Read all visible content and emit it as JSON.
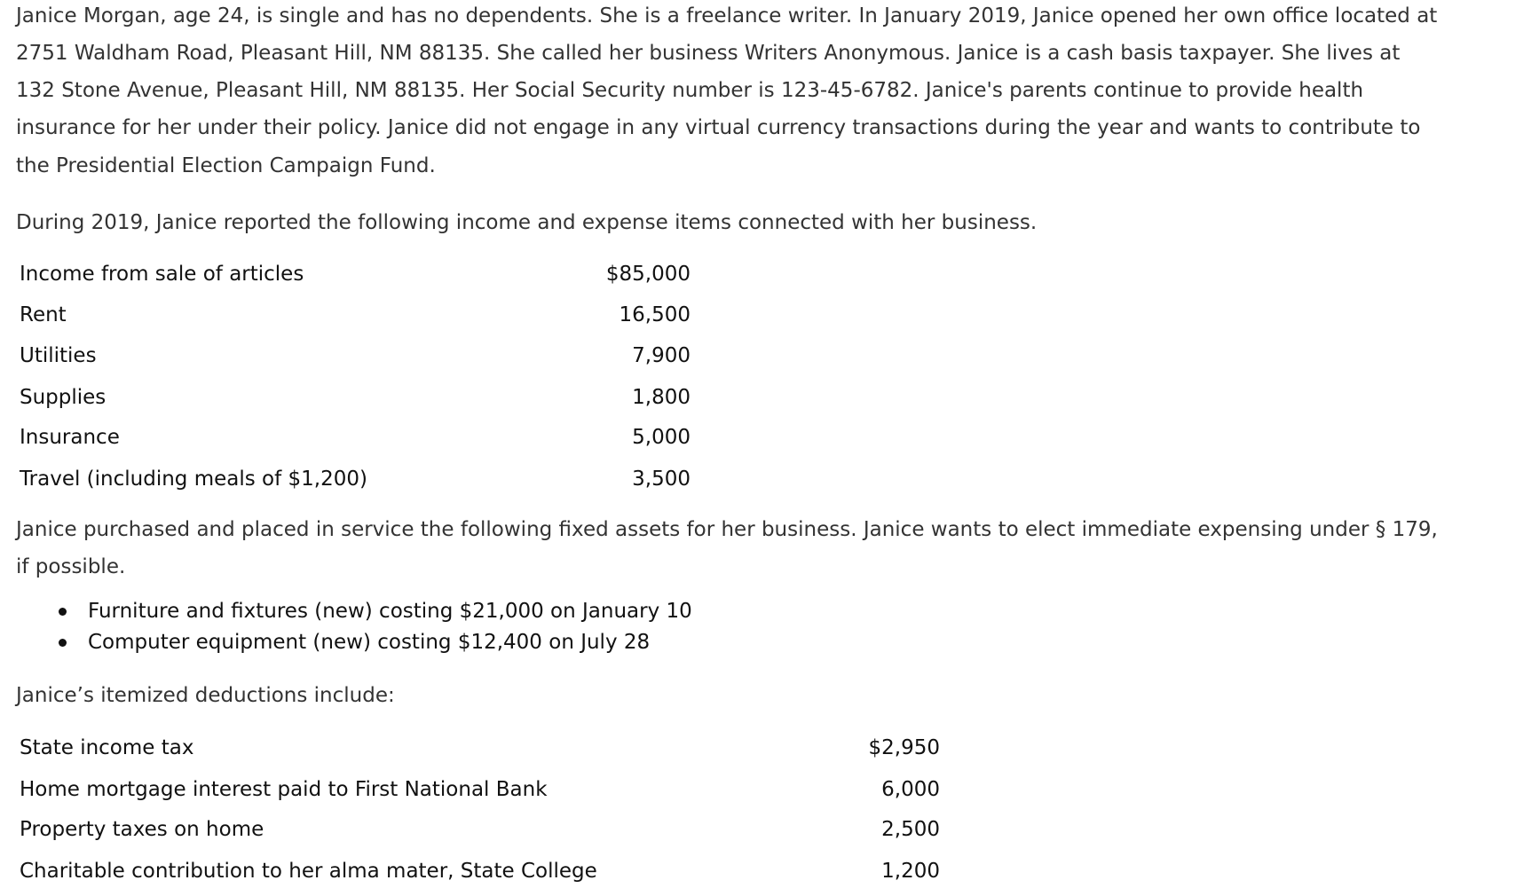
{
  "intro_lines": [
    "Janice Morgan, age 24, is single and has no dependents. She is a freelance writer. In January 2019, Janice opened her own office located at",
    "2751 Waldham Road, Pleasant Hill, NM 88135. She called her business Writers Anonymous. Janice is a cash basis taxpayer. She lives at",
    "132 Stone Avenue, Pleasant Hill, NM 88135. Her Social Security number is 123-45-6782. Janice's parents continue to provide health",
    "insurance for her under their policy. Janice did not engage in any virtual currency transactions during the year and wants to contribute to",
    "the Presidential Election Campaign Fund."
  ],
  "business_intro": "During 2019, Janice reported the following income and expense items connected with her business.",
  "business_items": [
    {
      "label": "Income from sale of articles",
      "amount": "$85,000"
    },
    {
      "label": "Rent",
      "amount": "16,500"
    },
    {
      "label": "Utilities",
      "amount": "7,900"
    },
    {
      "label": "Supplies",
      "amount": "1,800"
    },
    {
      "label": "Insurance",
      "amount": "5,000"
    },
    {
      "label": "Travel (including meals of $1,200)",
      "amount": "3,500"
    }
  ],
  "assets_intro_lines": [
    "Janice purchased and placed in service the following fixed assets for her business. Janice wants to elect immediate expensing under § 179,",
    "if possible."
  ],
  "assets": [
    "Furniture and fixtures (new) costing $21,000 on January 10",
    "Computer equipment (new) costing $12,400 on July 28"
  ],
  "deductions_intro": "Janice’s itemized deductions include:",
  "deductions": [
    {
      "label": "State income tax",
      "amount": "$2,950"
    },
    {
      "label": "Home mortgage interest paid to First National Bank",
      "amount": "6,000"
    },
    {
      "label": "Property taxes on home",
      "amount": "2,500"
    },
    {
      "label": "Charitable contribution to her alma mater, State College",
      "amount": "1,200"
    }
  ]
}
